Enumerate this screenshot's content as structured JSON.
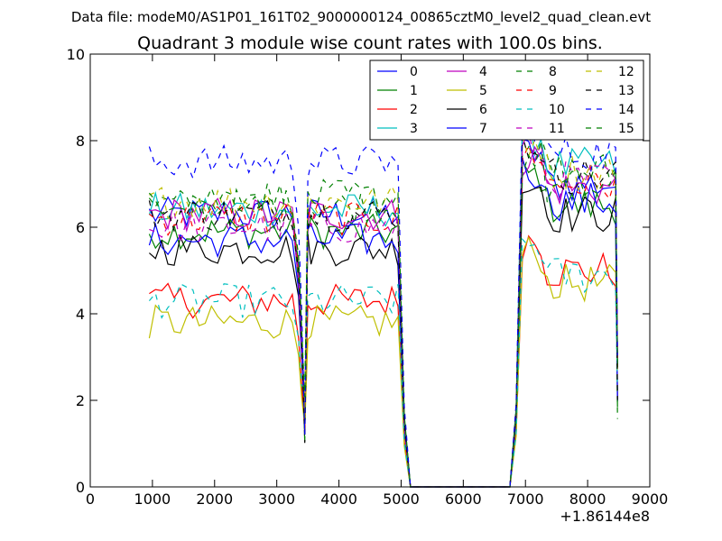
{
  "suptitle": "Data file: modeM0/AS1P01_161T02_9000000124_00865cztM0_level2_quad_clean.evt",
  "chart_data": {
    "type": "line",
    "title": "Quadrant 3 module wise count rates with 100.0s bins.",
    "xlabel": "",
    "ylabel": "",
    "x_offset_label": "+1.86144e8",
    "xlim": [
      0,
      9000
    ],
    "ylim": [
      0,
      10
    ],
    "x_ticks": [
      0,
      1000,
      2000,
      3000,
      4000,
      5000,
      6000,
      7000,
      8000,
      9000
    ],
    "y_ticks": [
      0,
      2,
      4,
      6,
      8,
      10
    ],
    "grid": false,
    "legend_location": "top-right",
    "legend_columns": 4,
    "time_axis": [
      950,
      1050,
      1150,
      1250,
      1350,
      1450,
      1550,
      1650,
      1750,
      1850,
      1950,
      2050,
      2150,
      2250,
      2350,
      2450,
      2550,
      2650,
      2750,
      2850,
      2950,
      3050,
      3150,
      3250,
      3350,
      3400,
      3450,
      3500,
      3550,
      3650,
      3750,
      3850,
      3950,
      4050,
      4150,
      4250,
      4350,
      4450,
      4550,
      4650,
      4750,
      4850,
      4950,
      5050,
      5150,
      5250,
      6750,
      6850,
      6950,
      7050,
      7150,
      7250,
      7350,
      7450,
      7550,
      7650,
      7750,
      7850,
      7950,
      8050,
      8150,
      8250,
      8350,
      8450,
      8480
    ],
    "series": [
      {
        "name": "0",
        "color": "#0000ff",
        "style": "solid",
        "level": 6.3,
        "after_level": 7.0
      },
      {
        "name": "1",
        "color": "#008000",
        "style": "solid",
        "level": 5.9,
        "after_level": 6.5
      },
      {
        "name": "2",
        "color": "#ff0000",
        "style": "solid",
        "level": 4.3,
        "after_level": 5.0
      },
      {
        "name": "3",
        "color": "#00bfbf",
        "style": "solid",
        "level": 6.4,
        "after_level": 7.4
      },
      {
        "name": "4",
        "color": "#bf00bf",
        "style": "solid",
        "level": 6.3,
        "after_level": 6.9
      },
      {
        "name": "5",
        "color": "#bfbf00",
        "style": "solid",
        "level": 3.8,
        "after_level": 4.7
      },
      {
        "name": "6",
        "color": "#000000",
        "style": "solid",
        "level": 5.5,
        "after_level": 6.3
      },
      {
        "name": "7",
        "color": "#0000ff",
        "style": "solid",
        "level": 5.7,
        "after_level": 6.6
      },
      {
        "name": "8",
        "color": "#008000",
        "style": "dashed",
        "level": 6.5,
        "after_level": 7.3
      },
      {
        "name": "9",
        "color": "#ff0000",
        "style": "dashed",
        "level": 6.2,
        "after_level": 7.0
      },
      {
        "name": "10",
        "color": "#00bfbf",
        "style": "dashed",
        "level": 4.3,
        "after_level": 4.9
      },
      {
        "name": "11",
        "color": "#bf00bf",
        "style": "dashed",
        "level": 6.0,
        "after_level": 7.1
      },
      {
        "name": "12",
        "color": "#bfbf00",
        "style": "dashed",
        "level": 6.6,
        "after_level": 7.3
      },
      {
        "name": "13",
        "color": "#000000",
        "style": "dashed",
        "level": 6.3,
        "after_level": 7.2
      },
      {
        "name": "14",
        "color": "#0000ff",
        "style": "dashed",
        "level": 7.5,
        "after_level": 7.7
      },
      {
        "name": "15",
        "color": "#008000",
        "style": "dashed",
        "level": 6.7,
        "after_level": 6.9
      }
    ]
  }
}
